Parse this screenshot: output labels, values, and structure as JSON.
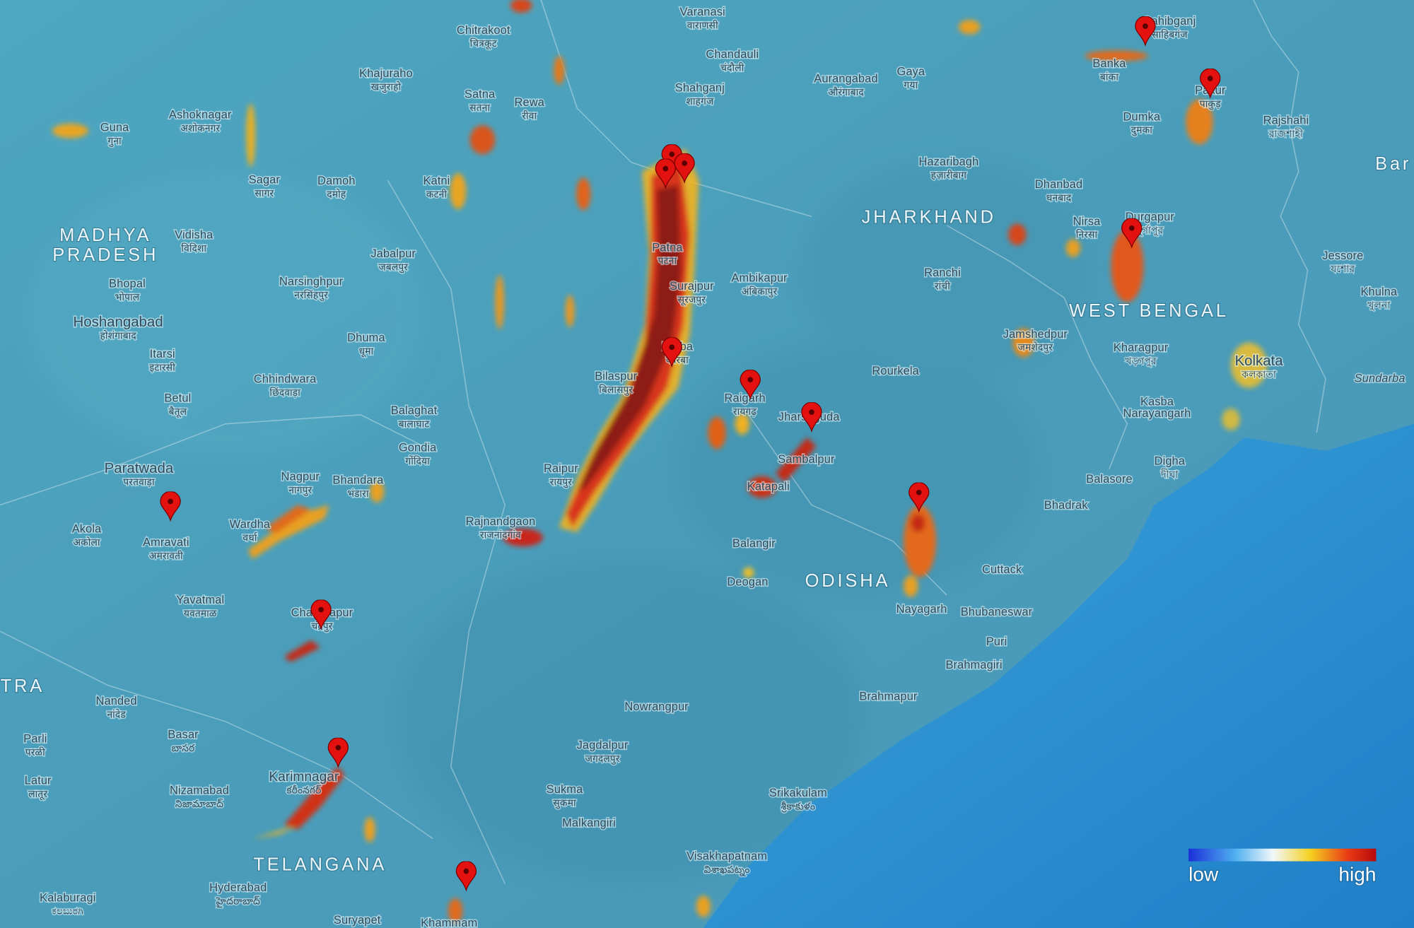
{
  "map": {
    "places": [
      {
        "name": "Guna",
        "local": "गुना"
      },
      {
        "name": "Ashoknagar",
        "local": "अशोकनगर"
      },
      {
        "name": "Sagar",
        "local": "सागर"
      },
      {
        "name": "Damoh",
        "local": "दमोह"
      },
      {
        "name": "Katni",
        "local": "कटनी"
      },
      {
        "name": "Satna",
        "local": "सतना"
      },
      {
        "name": "Rewa",
        "local": "रीवा"
      },
      {
        "name": "Khajuraho",
        "local": "खजुराहो"
      },
      {
        "name": "Chitrakoot",
        "local": "चित्रकूट"
      },
      {
        "name": "Varanasi",
        "local": "वाराणसी"
      },
      {
        "name": "Chandauli",
        "local": "चंदौली"
      },
      {
        "name": "Shahganj",
        "local": "शाहगंज"
      },
      {
        "name": "Aurangabad",
        "local": "औरंगाबाद"
      },
      {
        "name": "Gaya",
        "local": "गया"
      },
      {
        "name": "Banka",
        "local": "बांका"
      },
      {
        "name": "Sahibganj",
        "local": "साहिबगंज"
      },
      {
        "name": "Pakur",
        "local": "पाकुड़"
      },
      {
        "name": "Dumka",
        "local": "दुमका"
      },
      {
        "name": "Rajshahi",
        "local": "রাজশাহী"
      },
      {
        "name": "Hazaribagh",
        "local": "हज़ारीबाग"
      },
      {
        "name": "Dhanbad",
        "local": "धनबाद"
      },
      {
        "name": "Nirsa",
        "local": "निरसा"
      },
      {
        "name": "Durgapur",
        "local": "দুর্গাপুর"
      },
      {
        "name": "Ranchi",
        "local": "रांची"
      },
      {
        "name": "Ambikapur",
        "local": "अंबिकापुर"
      },
      {
        "name": "Surajpur",
        "local": "सूरजपुर"
      },
      {
        "name": "Patna",
        "local": "पटना"
      },
      {
        "name": "Jessore",
        "local": "যশোর"
      },
      {
        "name": "Khulna",
        "local": "খুলনা"
      },
      {
        "name": "Jamshedpur",
        "local": "जमशेदपुर"
      },
      {
        "name": "Kharagpur",
        "local": "খড়্গপুর"
      },
      {
        "name": "Kolkata",
        "local": "কলকাতা"
      },
      {
        "name": "Sundarba"
      },
      {
        "name": "Kasba"
      },
      {
        "name": "Narayangarh"
      },
      {
        "name": "Digha",
        "local": "দীঘা"
      },
      {
        "name": "Balasore"
      },
      {
        "name": "Bhadrak"
      },
      {
        "name": "Cuttack"
      },
      {
        "name": "Bhubaneswar"
      },
      {
        "name": "Nayagarh"
      },
      {
        "name": "Puri"
      },
      {
        "name": "Brahmagiri"
      },
      {
        "name": "Brahmapur"
      },
      {
        "name": "Srikakulam",
        "local": "శ్రీకాకుళం"
      },
      {
        "name": "Visakhapatnam",
        "local": "విశాఖపట్నం"
      },
      {
        "name": "Malkangiri"
      },
      {
        "name": "Sukma",
        "local": "सुकमा"
      },
      {
        "name": "Jagdalpur",
        "local": "जगदलपुर"
      },
      {
        "name": "Nowrangpur"
      },
      {
        "name": "Deogan"
      },
      {
        "name": "Balangir"
      },
      {
        "name": "Katapali"
      },
      {
        "name": "Sambalpur"
      },
      {
        "name": "Jharsuguda"
      },
      {
        "name": "Raigarh",
        "local": "रायगढ़"
      },
      {
        "name": "Rourkela"
      },
      {
        "name": "Korba",
        "local": "कोरबा"
      },
      {
        "name": "Bilaspur",
        "local": "बिलासपुर"
      },
      {
        "name": "Raipur",
        "local": "रायपुर"
      },
      {
        "name": "Rajnandgaon",
        "local": "राजनांदगांव"
      },
      {
        "name": "Balaghat",
        "local": "बालाघाट"
      },
      {
        "name": "Gondia",
        "local": "गोंदिया"
      },
      {
        "name": "Dhuma",
        "local": "धूमा"
      },
      {
        "name": "Jabalpur",
        "local": "जबलपुर"
      },
      {
        "name": "Narsinghpur",
        "local": "नरसिंहपुर"
      },
      {
        "name": "Chhindwara",
        "local": "छिंदवाड़ा"
      },
      {
        "name": "Betul",
        "local": "बैतूल"
      },
      {
        "name": "Itarsi",
        "local": "इटारसी"
      },
      {
        "name": "Hoshangabad",
        "local": "होशंगाबाद"
      },
      {
        "name": "Bhopal",
        "local": "भोपाल"
      },
      {
        "name": "Vidisha",
        "local": "विदिशा"
      },
      {
        "name": "Paratwada",
        "local": "परतवाड़ा"
      },
      {
        "name": "Nagpur",
        "local": "नागपुर"
      },
      {
        "name": "Bhandara",
        "local": "भंडारा"
      },
      {
        "name": "Wardha",
        "local": "वर्धा"
      },
      {
        "name": "Akola",
        "local": "अकोला"
      },
      {
        "name": "Amravati",
        "local": "अमरावती"
      },
      {
        "name": "Yavatmal",
        "local": "यवतमाळ"
      },
      {
        "name": "Chandrapur",
        "local": "चंद्रपुर"
      },
      {
        "name": "Nanded",
        "local": "नांदेड"
      },
      {
        "name": "Parli",
        "local": "परळी"
      },
      {
        "name": "Basar",
        "local": "బాసర"
      },
      {
        "name": "Latur",
        "local": "लातूर"
      },
      {
        "name": "Nizamabad",
        "local": "నిజామాబాద్"
      },
      {
        "name": "Karimnagar",
        "local": "కరీంనగర్"
      },
      {
        "name": "Hyderabad",
        "local": "హైదరాబాద్"
      },
      {
        "name": "Kalaburagi",
        "local": "ಕಲಬುರಗಿ"
      },
      {
        "name": "Suryapet"
      },
      {
        "name": "Khammam"
      }
    ],
    "regions": [
      {
        "name": "MADHYA"
      },
      {
        "name": "PRADESH"
      },
      {
        "name": "JHARKHAND"
      },
      {
        "name": "WEST BENGAL"
      },
      {
        "name": "ODISHA"
      },
      {
        "name": "TELANGANA"
      },
      {
        "name": "TRA"
      },
      {
        "name": "Bar"
      }
    ],
    "legend": {
      "low": "low",
      "high": "high"
    }
  }
}
